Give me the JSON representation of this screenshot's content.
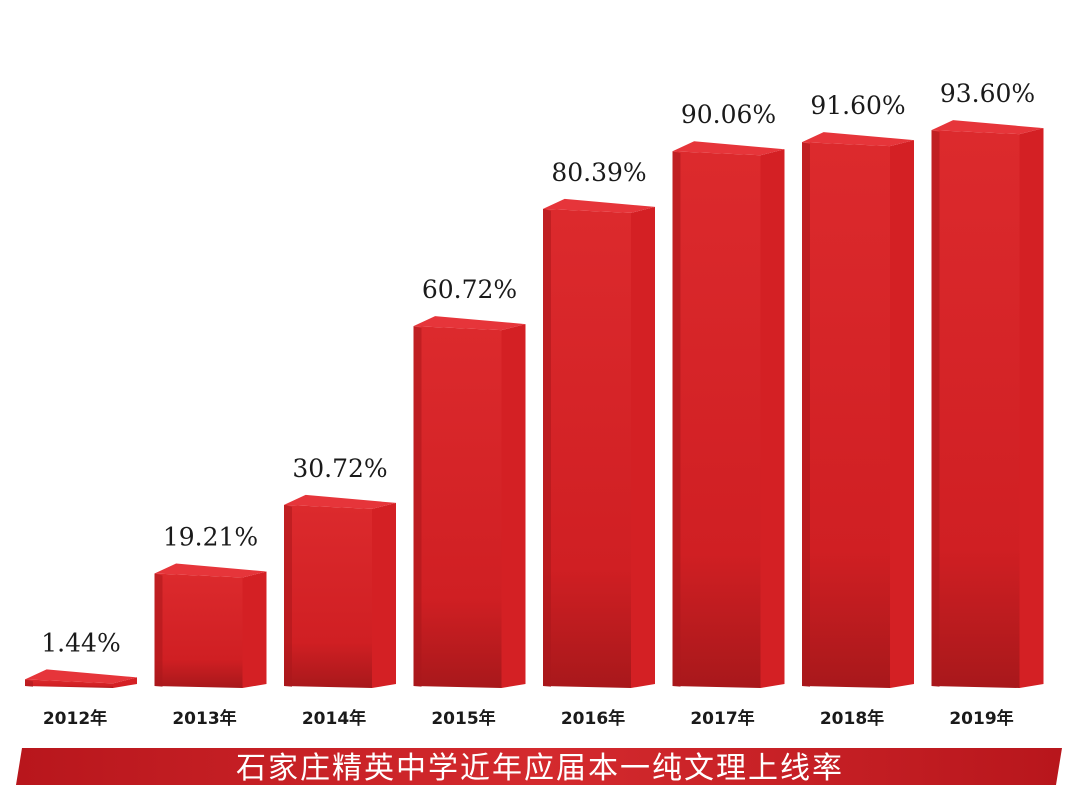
{
  "colors": {
    "bar_front": "#d42024",
    "bar_side": "#a9181c",
    "bar_top": "#e6353a",
    "title_band": "#c41f25",
    "title_text": "#ffffff"
  },
  "chart_data": {
    "type": "bar",
    "title": "石家庄精英中学近年应届本一纯文理上线率",
    "categories": [
      "2012年",
      "2013年",
      "2014年",
      "2015年",
      "2016年",
      "2017年",
      "2018年",
      "2019年"
    ],
    "values": [
      1.44,
      19.21,
      30.72,
      60.72,
      80.39,
      90.06,
      91.6,
      93.6
    ],
    "data_labels": [
      "1.44%",
      "19.21%",
      "30.72%",
      "60.72%",
      "80.39%",
      "90.06%",
      "91.60%",
      "93.60%"
    ],
    "ylim": [
      0,
      100
    ],
    "grid": false,
    "legend": "none",
    "style": "3d-bars"
  }
}
